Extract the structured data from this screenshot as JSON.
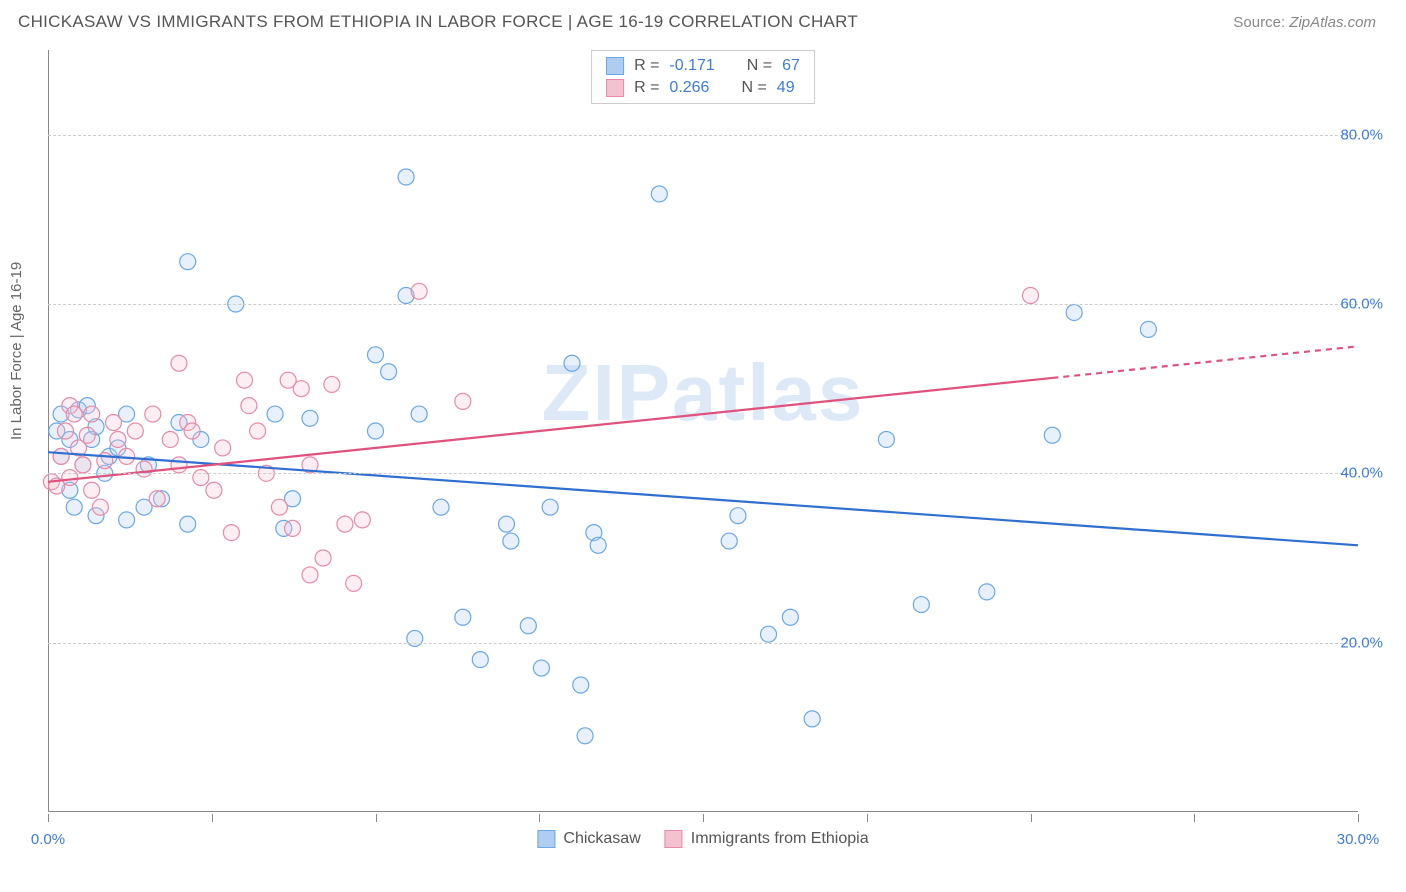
{
  "header": {
    "title": "CHICKASAW VS IMMIGRANTS FROM ETHIOPIA IN LABOR FORCE | AGE 16-19 CORRELATION CHART",
    "source_prefix": "Source: ",
    "source_link": "ZipAtlas.com"
  },
  "chart": {
    "type": "scatter",
    "y_axis_label": "In Labor Force | Age 16-19",
    "xlim": [
      0,
      30
    ],
    "ylim": [
      0,
      90
    ],
    "x_ticks": [
      0,
      3.75,
      7.5,
      11.25,
      15,
      18.75,
      22.5,
      26.25,
      30
    ],
    "x_tick_labels": {
      "0": "0.0%",
      "30": "30.0%"
    },
    "y_gridlines": [
      20,
      40,
      60,
      80
    ],
    "y_tick_labels": {
      "20": "20.0%",
      "40": "40.0%",
      "60": "60.0%",
      "80": "80.0%"
    },
    "watermark": "ZIPatlas",
    "background_color": "#ffffff",
    "grid_color": "#cccccc",
    "axis_color": "#888888",
    "marker_radius": 8,
    "marker_stroke_width": 1.2,
    "marker_fill_opacity": 0.28,
    "series": [
      {
        "name": "Chickasaw",
        "color_stroke": "#6aa8e8",
        "color_fill": "#aecdf0",
        "trend_color": "#2f6fd0",
        "R": "-0.171",
        "N": "67",
        "trend": {
          "y_at_x0": 42.5,
          "y_at_x30": 31.5,
          "dash_from_x": null
        },
        "points": [
          [
            0.2,
            45
          ],
          [
            0.3,
            42
          ],
          [
            0.3,
            47
          ],
          [
            0.5,
            38
          ],
          [
            0.5,
            44
          ],
          [
            0.6,
            36
          ],
          [
            0.7,
            47.5
          ],
          [
            0.8,
            41
          ],
          [
            0.9,
            48
          ],
          [
            1.0,
            44
          ],
          [
            1.1,
            35
          ],
          [
            1.1,
            45.5
          ],
          [
            1.3,
            40
          ],
          [
            1.4,
            42
          ],
          [
            1.6,
            43
          ],
          [
            1.8,
            47
          ],
          [
            1.8,
            34.5
          ],
          [
            2.2,
            36
          ],
          [
            2.3,
            41
          ],
          [
            2.6,
            37
          ],
          [
            3.0,
            46
          ],
          [
            3.2,
            34
          ],
          [
            3.2,
            65
          ],
          [
            3.5,
            44
          ],
          [
            4.3,
            60
          ],
          [
            5.2,
            47
          ],
          [
            5.4,
            33.5
          ],
          [
            5.6,
            37
          ],
          [
            6.0,
            46.5
          ],
          [
            7.5,
            54
          ],
          [
            7.5,
            45
          ],
          [
            7.8,
            52
          ],
          [
            8.2,
            75
          ],
          [
            8.2,
            61
          ],
          [
            8.4,
            20.5
          ],
          [
            8.5,
            47
          ],
          [
            9.0,
            36
          ],
          [
            9.5,
            23
          ],
          [
            9.9,
            18
          ],
          [
            10.5,
            34
          ],
          [
            10.6,
            32
          ],
          [
            11.0,
            22
          ],
          [
            11.3,
            17
          ],
          [
            11.5,
            36
          ],
          [
            12.0,
            53
          ],
          [
            12.2,
            15
          ],
          [
            12.3,
            9
          ],
          [
            12.5,
            33
          ],
          [
            12.6,
            31.5
          ],
          [
            14.0,
            73
          ],
          [
            15.6,
            32
          ],
          [
            15.8,
            35
          ],
          [
            16.5,
            21
          ],
          [
            17.0,
            23
          ],
          [
            17.5,
            11
          ],
          [
            19.2,
            44
          ],
          [
            20.0,
            24.5
          ],
          [
            21.5,
            26
          ],
          [
            23.5,
            59
          ],
          [
            25.2,
            57
          ],
          [
            23.0,
            44.5
          ]
        ]
      },
      {
        "name": "Immigrants from Ethiopia",
        "color_stroke": "#e88aa8",
        "color_fill": "#f4c1d1",
        "trend_color": "#e0527d",
        "R": "0.266",
        "N": "49",
        "trend": {
          "y_at_x0": 39,
          "y_at_x30": 55,
          "dash_from_x": 23
        },
        "points": [
          [
            0.08,
            39
          ],
          [
            0.2,
            38.5
          ],
          [
            0.3,
            42
          ],
          [
            0.4,
            45
          ],
          [
            0.5,
            48
          ],
          [
            0.5,
            39.5
          ],
          [
            0.6,
            47
          ],
          [
            0.7,
            43
          ],
          [
            0.8,
            41
          ],
          [
            0.9,
            44.5
          ],
          [
            1.0,
            47
          ],
          [
            1.0,
            38
          ],
          [
            1.2,
            36
          ],
          [
            1.3,
            41.5
          ],
          [
            1.5,
            46
          ],
          [
            1.6,
            44
          ],
          [
            1.8,
            42
          ],
          [
            2.0,
            45
          ],
          [
            2.2,
            40.5
          ],
          [
            2.4,
            47
          ],
          [
            2.5,
            37
          ],
          [
            2.8,
            44
          ],
          [
            3.0,
            53
          ],
          [
            3.0,
            41
          ],
          [
            3.2,
            46
          ],
          [
            3.3,
            45
          ],
          [
            3.5,
            39.5
          ],
          [
            3.8,
            38
          ],
          [
            4.0,
            43
          ],
          [
            4.2,
            33
          ],
          [
            4.5,
            51
          ],
          [
            4.6,
            48
          ],
          [
            4.8,
            45
          ],
          [
            5.0,
            40
          ],
          [
            5.3,
            36
          ],
          [
            5.5,
            51
          ],
          [
            5.6,
            33.5
          ],
          [
            5.8,
            50
          ],
          [
            6.0,
            28
          ],
          [
            6.0,
            41
          ],
          [
            6.3,
            30
          ],
          [
            6.5,
            50.5
          ],
          [
            6.8,
            34
          ],
          [
            7.0,
            27
          ],
          [
            7.2,
            34.5
          ],
          [
            8.5,
            61.5
          ],
          [
            9.5,
            48.5
          ],
          [
            22.5,
            61
          ]
        ]
      }
    ],
    "legend": {
      "stats_rows": [
        {
          "swatch_fill": "#aecdf0",
          "swatch_stroke": "#6aa8e8",
          "r_label": "R =",
          "r_value": "-0.171",
          "n_label": "N =",
          "n_value": "67"
        },
        {
          "swatch_fill": "#f4c1d1",
          "swatch_stroke": "#e88aa8",
          "r_label": "R =",
          "r_value": "0.266",
          "n_label": "N =",
          "n_value": "49"
        }
      ],
      "bottom_items": [
        {
          "swatch_fill": "#aecdf0",
          "swatch_stroke": "#6aa8e8",
          "label": "Chickasaw"
        },
        {
          "swatch_fill": "#f4c1d1",
          "swatch_stroke": "#e88aa8",
          "label": "Immigrants from Ethiopia"
        }
      ]
    }
  }
}
